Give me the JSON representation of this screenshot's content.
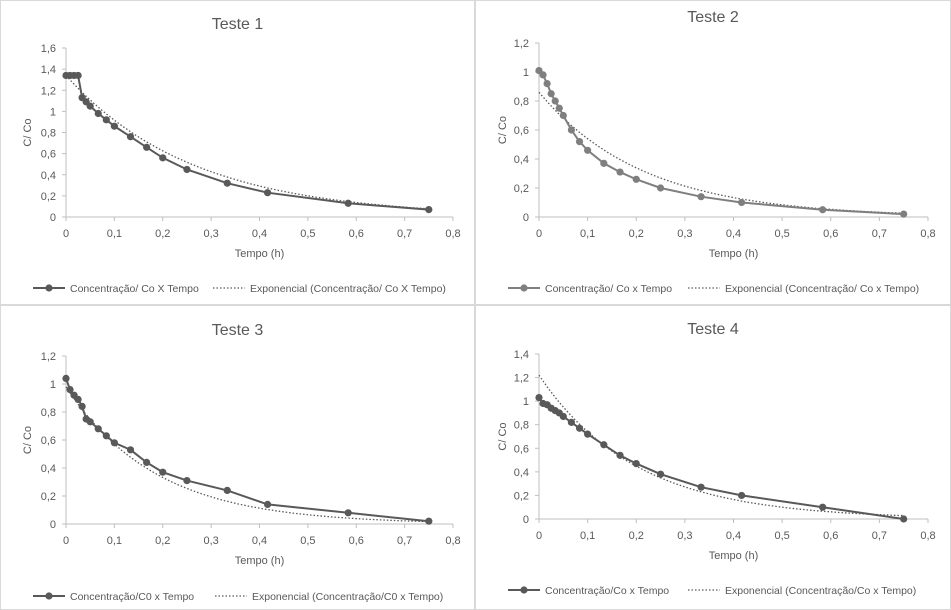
{
  "chart_data": [
    {
      "type": "line",
      "title": "Teste  1",
      "xlabel": "Tempo  (h)",
      "ylabel": "C/ Co",
      "xlim": [
        0,
        0.8
      ],
      "ylim": [
        0,
        1.6
      ],
      "x_ticks": [
        "0",
        "0,1",
        "0,2",
        "0,3",
        "0,4",
        "0,5",
        "0,6",
        "0,7",
        "0,8"
      ],
      "y_ticks": [
        "0",
        "0,2",
        "0,4",
        "0,6",
        "0,8",
        "1",
        "1,2",
        "1,4",
        "1,6"
      ],
      "legend_position": "bottom",
      "series": [
        {
          "name": "Concentração/ Co X Tempo",
          "style": "solid-markers",
          "color": "#595959",
          "x": [
            0,
            0.00833,
            0.01667,
            0.025,
            0.03333,
            0.04167,
            0.05,
            0.06667,
            0.08333,
            0.1,
            0.13333,
            0.16667,
            0.2,
            0.25,
            0.33333,
            0.41667,
            0.58333,
            0.75
          ],
          "y": [
            1.34,
            1.34,
            1.34,
            1.34,
            1.13,
            1.09,
            1.05,
            0.98,
            0.92,
            0.86,
            0.76,
            0.66,
            0.56,
            0.45,
            0.32,
            0.23,
            0.13,
            0.07
          ]
        },
        {
          "name": "Exponencial (Concentração/ Co X Tempo)",
          "style": "dotted",
          "color": "#595959",
          "fit": {
            "a": 1.34,
            "b": 3.8
          }
        }
      ]
    },
    {
      "type": "line",
      "title": "Teste 2",
      "xlabel": "Tempo  (h)",
      "ylabel": "C/ Co",
      "xlim": [
        0,
        0.8
      ],
      "ylim": [
        0,
        1.2
      ],
      "x_ticks": [
        "0",
        "0,1",
        "0,2",
        "0,3",
        "0,4",
        "0,5",
        "0,6",
        "0,7",
        "0,8"
      ],
      "y_ticks": [
        "0",
        "0,2",
        "0,4",
        "0,6",
        "0,8",
        "1",
        "1,2"
      ],
      "legend_position": "bottom",
      "series": [
        {
          "name": "Concentração/ Co x Tempo",
          "style": "solid-markers",
          "color": "#7f7f7f",
          "x": [
            0,
            0.00833,
            0.01667,
            0.025,
            0.03333,
            0.04167,
            0.05,
            0.06667,
            0.08333,
            0.1,
            0.13333,
            0.16667,
            0.2,
            0.25,
            0.33333,
            0.41667,
            0.58333,
            0.75
          ],
          "y": [
            1.01,
            0.98,
            0.92,
            0.85,
            0.8,
            0.75,
            0.7,
            0.6,
            0.52,
            0.46,
            0.37,
            0.31,
            0.26,
            0.2,
            0.14,
            0.1,
            0.05,
            0.02
          ]
        },
        {
          "name": "Exponencial (Concentração/ Co x Tempo)",
          "style": "dotted",
          "color": "#595959",
          "fit": {
            "a": 0.86,
            "b": 4.65
          }
        }
      ]
    },
    {
      "type": "line",
      "title": "Teste 3",
      "xlabel": "Tempo  (h)",
      "ylabel": "C/ Co",
      "xlim": [
        0,
        0.8
      ],
      "ylim": [
        0,
        1.2
      ],
      "x_ticks": [
        "0",
        "0,1",
        "0,2",
        "0,3",
        "0,4",
        "0,5",
        "0,6",
        "0,7",
        "0,8"
      ],
      "y_ticks": [
        "0",
        "0,2",
        "0,4",
        "0,6",
        "0,8",
        "1",
        "1,2"
      ],
      "legend_position": "bottom",
      "series": [
        {
          "name": "Concentração/C0 x Tempo",
          "style": "solid-markers",
          "color": "#595959",
          "x": [
            0,
            0.00833,
            0.01667,
            0.025,
            0.03333,
            0.04167,
            0.05,
            0.06667,
            0.08333,
            0.1,
            0.13333,
            0.16667,
            0.2,
            0.25,
            0.33333,
            0.41667,
            0.58333,
            0.75
          ],
          "y": [
            1.04,
            0.96,
            0.92,
            0.89,
            0.84,
            0.75,
            0.73,
            0.68,
            0.63,
            0.58,
            0.53,
            0.44,
            0.37,
            0.31,
            0.24,
            0.14,
            0.08,
            0.02
          ]
        },
        {
          "name": "Exponencial (Concentração/C0 x Tempo)",
          "style": "dotted",
          "color": "#595959",
          "fit": {
            "a": 0.98,
            "b": 5.4
          }
        }
      ]
    },
    {
      "type": "line",
      "title": "Teste 4",
      "xlabel": "Tempo  (h)",
      "ylabel": "C/ Co",
      "xlim": [
        0,
        0.8
      ],
      "ylim": [
        0,
        1.4
      ],
      "x_ticks": [
        "0",
        "0,1",
        "0,2",
        "0,3",
        "0,4",
        "0,5",
        "0,6",
        "0,7",
        "0,8"
      ],
      "y_ticks": [
        "0",
        "0,2",
        "0,4",
        "0,6",
        "0,8",
        "1",
        "1,2",
        "1,4"
      ],
      "legend_position": "bottom",
      "series": [
        {
          "name": "Concentração/Co x Tempo",
          "style": "solid-markers",
          "color": "#595959",
          "x": [
            0,
            0.00833,
            0.01667,
            0.025,
            0.03333,
            0.04167,
            0.05,
            0.06667,
            0.08333,
            0.1,
            0.13333,
            0.16667,
            0.2,
            0.25,
            0.33333,
            0.41667,
            0.58333,
            0.75
          ],
          "y": [
            1.03,
            0.98,
            0.97,
            0.94,
            0.92,
            0.9,
            0.87,
            0.82,
            0.77,
            0.72,
            0.63,
            0.54,
            0.47,
            0.38,
            0.27,
            0.2,
            0.1,
            0.0
          ]
        },
        {
          "name": "Exponencial (Concentração/Co x Tempo)",
          "style": "dotted",
          "color": "#595959",
          "fit": {
            "a": 1.22,
            "b": 5.0
          }
        }
      ]
    }
  ]
}
